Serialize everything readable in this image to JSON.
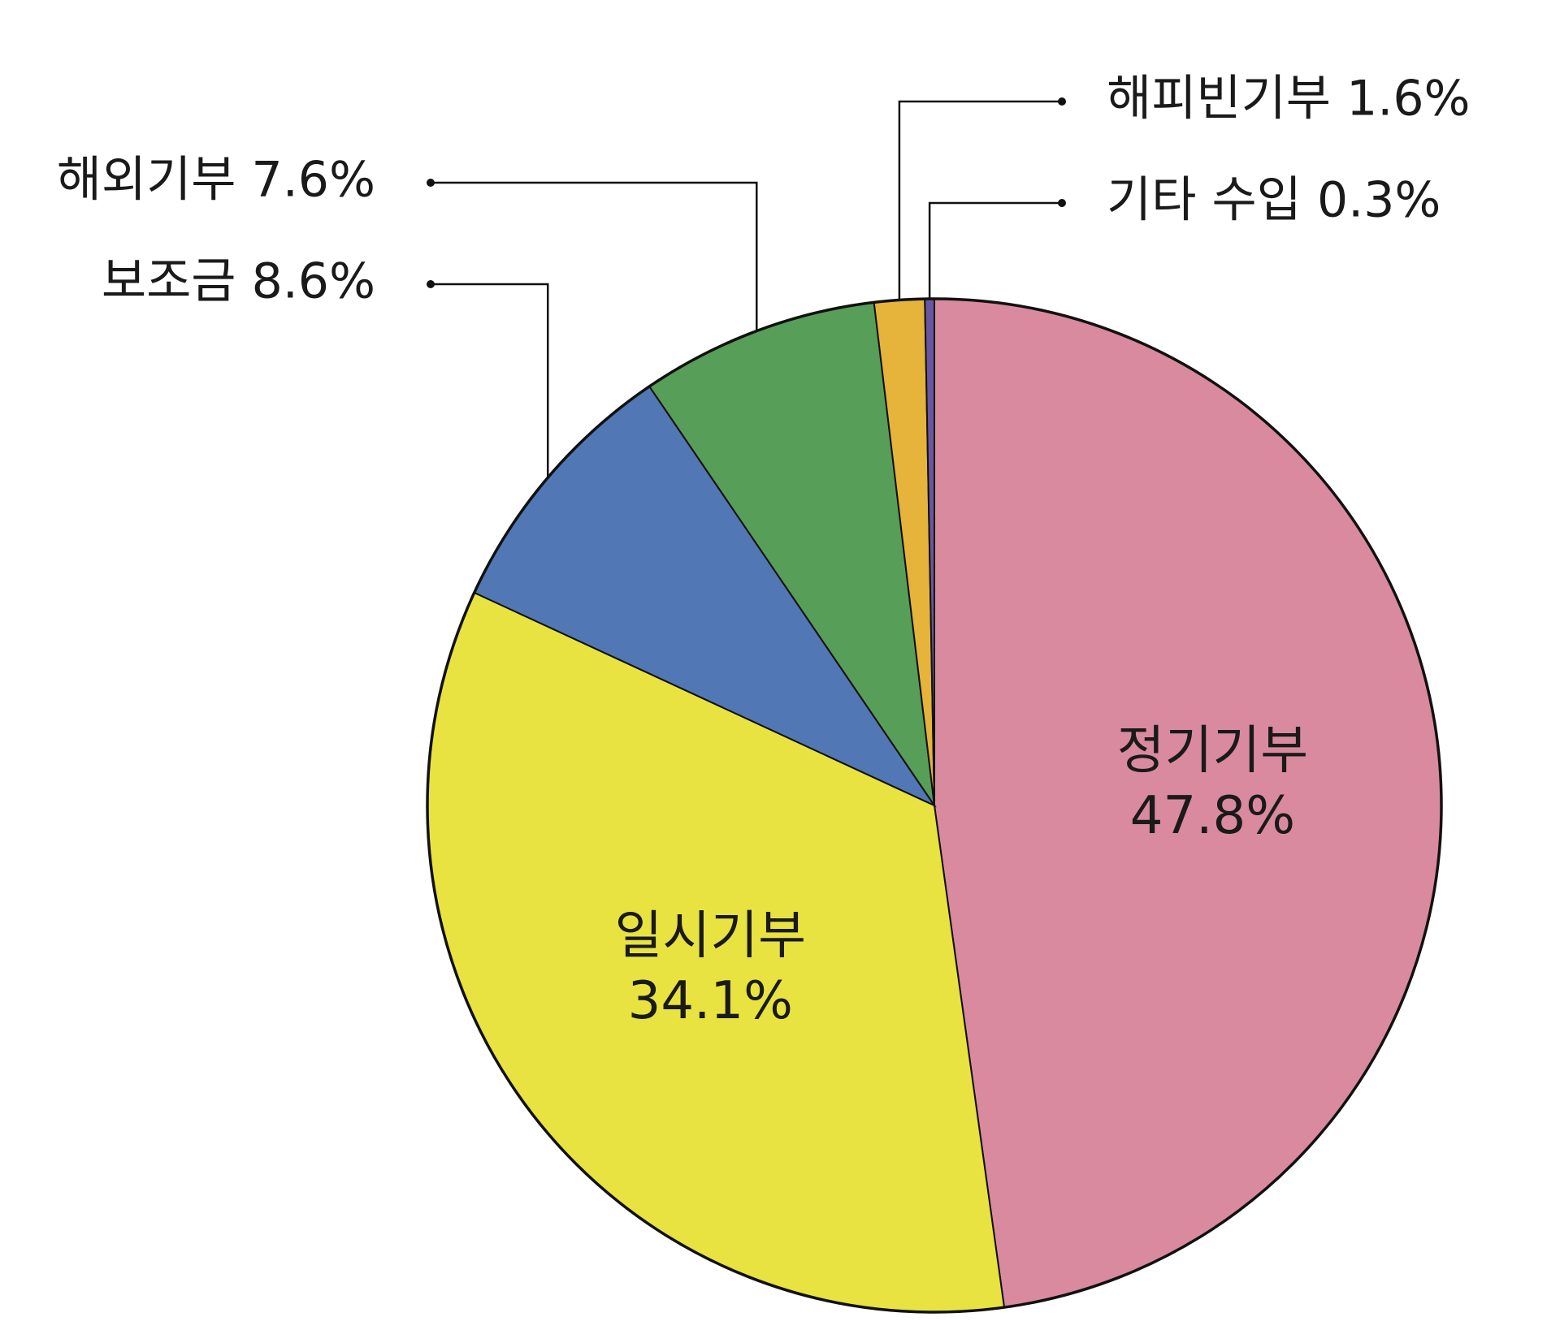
{
  "chart_data": {
    "type": "pie",
    "title": "",
    "slices": [
      {
        "label": "정기기부",
        "value": 47.8,
        "display": "47.8%",
        "color": "#D98A9E"
      },
      {
        "label": "일시기부",
        "value": 34.1,
        "display": "34.1%",
        "color": "#E8E340"
      },
      {
        "label": "보조금",
        "value": 8.6,
        "display": "8.6%",
        "color": "#5178B5"
      },
      {
        "label": "해외기부",
        "value": 7.6,
        "display": "7.6%",
        "color": "#579E59"
      },
      {
        "label": "해피빈기부",
        "value": 1.6,
        "display": "1.6%",
        "color": "#E6B33B"
      },
      {
        "label": "기타 수입",
        "value": 0.3,
        "display": "0.3%",
        "color": "#6A56A0"
      }
    ],
    "labels": {
      "inside": [
        "정기기부",
        "일시기부"
      ],
      "outside_left": [
        "해외기부",
        "보조금"
      ],
      "outside_right": [
        "해피빈기부",
        "기타 수입"
      ]
    },
    "legend": "none",
    "start_angle": "12 o'clock",
    "direction": "clockwise"
  }
}
